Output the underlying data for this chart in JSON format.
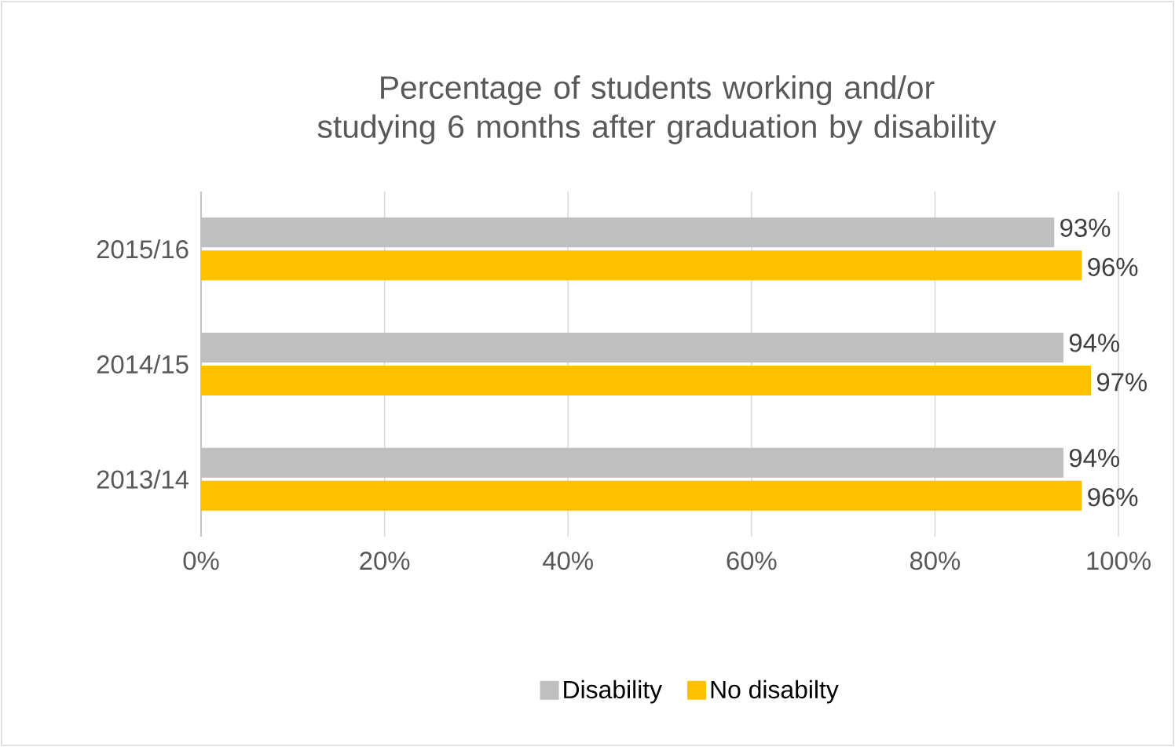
{
  "chart_data": {
    "type": "bar",
    "orientation": "horizontal",
    "title": "Percentage of students working and/or studying 6 months after graduation by disability",
    "categories": [
      "2015/16",
      "2014/15",
      "2013/14"
    ],
    "series": [
      {
        "name": "Disability",
        "color": "#bfbfbf",
        "values": [
          93,
          94,
          94
        ],
        "value_labels": [
          "93%",
          "94%",
          "94%"
        ]
      },
      {
        "name": "No disabilty",
        "color": "#ffc000",
        "values": [
          96,
          97,
          96
        ],
        "value_labels": [
          "96%",
          "97%",
          "96%"
        ]
      }
    ],
    "xlim": [
      0,
      100
    ],
    "xticks": [
      {
        "value": 0,
        "label": "0%"
      },
      {
        "value": 20,
        "label": "20%"
      },
      {
        "value": 40,
        "label": "40%"
      },
      {
        "value": 60,
        "label": "60%"
      },
      {
        "value": 80,
        "label": "80%"
      },
      {
        "value": 100,
        "label": "100%"
      }
    ],
    "grid": "x",
    "legend": "bottom"
  }
}
